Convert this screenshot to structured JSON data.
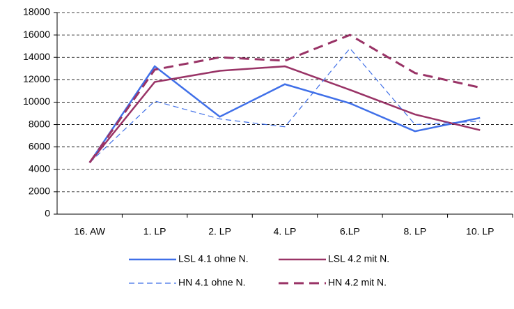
{
  "chart_data": {
    "type": "line",
    "categories": [
      "16. AW",
      "1. LP",
      "2. LP",
      "4. LP",
      "6.LP",
      "8. LP",
      "10. LP"
    ],
    "series": [
      {
        "name": "LSL 4.1 ohne N.",
        "color": "#3f6fe8",
        "dashed": false,
        "linewidth": 2.5,
        "values": [
          4600,
          13200,
          8700,
          11600,
          9900,
          7400,
          8600
        ]
      },
      {
        "name": "LSL 4.2 mit N.",
        "color": "#993366",
        "dashed": false,
        "linewidth": 2.5,
        "values": [
          4600,
          11800,
          12800,
          13200,
          11100,
          8900,
          7500
        ]
      },
      {
        "name": "HN 4.1 ohne N.",
        "color": "#3f6fe8",
        "dashed": true,
        "linewidth": 1.2,
        "values": [
          4600,
          10100,
          8500,
          7800,
          14800,
          8000,
          8300
        ]
      },
      {
        "name": "HN 4.2 mit N.",
        "color": "#993366",
        "dashed": true,
        "linewidth": 3,
        "values": [
          4600,
          12900,
          14000,
          13700,
          16000,
          12600,
          11300
        ]
      }
    ],
    "ylim": [
      0,
      18000
    ],
    "yticks": [
      0,
      2000,
      4000,
      6000,
      8000,
      10000,
      12000,
      14000,
      16000,
      18000
    ],
    "grid": true,
    "legend": "bottom"
  }
}
